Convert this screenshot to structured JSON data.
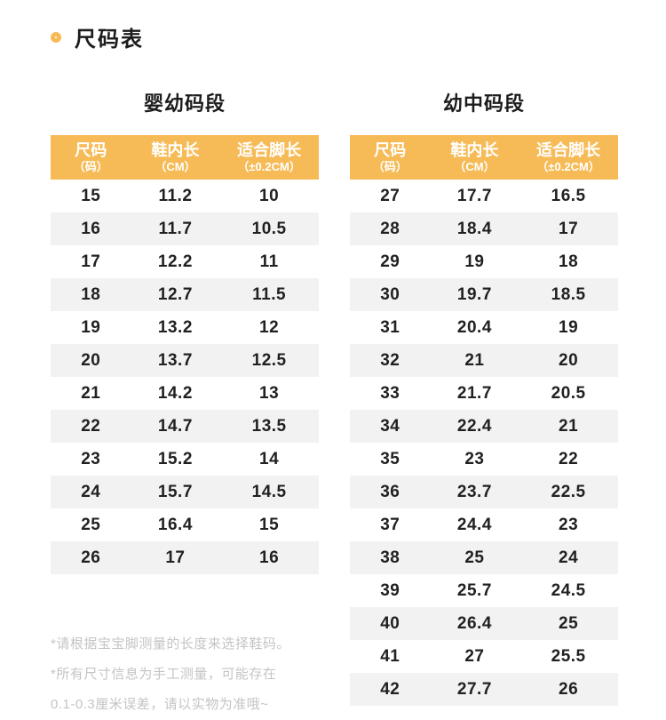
{
  "page": {
    "title": "尺码表"
  },
  "chart_data": [
    {
      "type": "table",
      "title": "婴幼码段",
      "header": [
        {
          "main": "尺码",
          "sub": "（码）"
        },
        {
          "main": "鞋内长",
          "sub": "（CM）"
        },
        {
          "main": "适合脚长",
          "sub": "（±0.2CM）"
        }
      ],
      "columns": [
        "尺码（码）",
        "鞋内长（CM）",
        "适合脚长（±0.2CM）"
      ],
      "rows": [
        [
          "15",
          "11.2",
          "10"
        ],
        [
          "16",
          "11.7",
          "10.5"
        ],
        [
          "17",
          "12.2",
          "11"
        ],
        [
          "18",
          "12.7",
          "11.5"
        ],
        [
          "19",
          "13.2",
          "12"
        ],
        [
          "20",
          "13.7",
          "12.5"
        ],
        [
          "21",
          "14.2",
          "13"
        ],
        [
          "22",
          "14.7",
          "13.5"
        ],
        [
          "23",
          "15.2",
          "14"
        ],
        [
          "24",
          "15.7",
          "14.5"
        ],
        [
          "25",
          "16.4",
          "15"
        ],
        [
          "26",
          "17",
          "16"
        ]
      ]
    },
    {
      "type": "table",
      "title": "幼中码段",
      "header": [
        {
          "main": "尺码",
          "sub": "（码）"
        },
        {
          "main": "鞋内长",
          "sub": "（CM）"
        },
        {
          "main": "适合脚长",
          "sub": "（±0.2CM）"
        }
      ],
      "columns": [
        "尺码（码）",
        "鞋内长（CM）",
        "适合脚长（±0.2CM）"
      ],
      "rows": [
        [
          "27",
          "17.7",
          "16.5"
        ],
        [
          "28",
          "18.4",
          "17"
        ],
        [
          "29",
          "19",
          "18"
        ],
        [
          "30",
          "19.7",
          "18.5"
        ],
        [
          "31",
          "20.4",
          "19"
        ],
        [
          "32",
          "21",
          "20"
        ],
        [
          "33",
          "21.7",
          "20.5"
        ],
        [
          "34",
          "22.4",
          "21"
        ],
        [
          "35",
          "23",
          "22"
        ],
        [
          "36",
          "23.7",
          "22.5"
        ],
        [
          "37",
          "24.4",
          "23"
        ],
        [
          "38",
          "25",
          "24"
        ],
        [
          "39",
          "25.7",
          "24.5"
        ],
        [
          "40",
          "26.4",
          "25"
        ],
        [
          "41",
          "27",
          "25.5"
        ],
        [
          "42",
          "27.7",
          "26"
        ]
      ]
    }
  ],
  "footnotes": [
    "*请根据宝宝脚测量的长度来选择鞋码。",
    "*所有尺寸信息为手工测量，可能存在",
    "0.1-0.3厘米误差，请以实物为准哦~"
  ],
  "colors": {
    "accent": "#F6BB57",
    "stripe": "#F2F2F2",
    "text": "#212121",
    "footnote": "#C4C4C4"
  }
}
